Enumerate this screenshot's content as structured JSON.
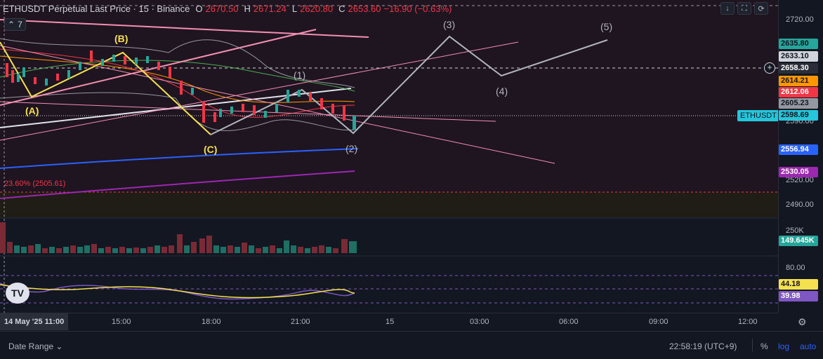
{
  "header": {
    "symbol": "ETHUSDT Perpetual Last Price · 15 · Binance",
    "o_label": "O",
    "o_value": "2670.50",
    "h_label": "H",
    "h_value": "2671.24",
    "l_label": "L",
    "l_value": "2620.80",
    "c_label": "C",
    "c_value": "2653.60",
    "change": "−16.90 (−0.63%)"
  },
  "indicators_toggle": {
    "count": "7"
  },
  "wave_labels": {
    "a": "(A)",
    "b": "(B)",
    "c": "(C)",
    "w1": "(1)",
    "w2": "(2)",
    "w3": "(3)",
    "w4": "(4)",
    "w5": "(5)"
  },
  "fib_label": "23.60% (2505.61)",
  "symbol_tag": "ETHUSDT",
  "price_axis": {
    "ticks": [
      "2720.00",
      "2590.00",
      "2520.00",
      "2490.00",
      "250K",
      "80.00"
    ],
    "tags": [
      {
        "value": "2635.80",
        "bg": "#26a69a",
        "fg": "#131722"
      },
      {
        "value": "2633.10",
        "bg": "#d1d4dc",
        "fg": "#131722"
      },
      {
        "value": "2658.30",
        "bg": "#2a2e39",
        "fg": "#ffffff"
      },
      {
        "value": "2614.21",
        "bg": "#ff9800",
        "fg": "#131722"
      },
      {
        "value": "2612.06",
        "bg": "#f23645",
        "fg": "#ffffff"
      },
      {
        "value": "2605.23",
        "bg": "#9598a1",
        "fg": "#131722"
      },
      {
        "value": "2598.69",
        "bg": "#26c6da",
        "fg": "#131722"
      },
      {
        "value": "2556.94",
        "bg": "#2962ff",
        "fg": "#ffffff"
      },
      {
        "value": "2530.05",
        "bg": "#9c27b0",
        "fg": "#ffffff"
      },
      {
        "value": "149.645K",
        "bg": "#26a69a",
        "fg": "#ffffff"
      },
      {
        "value": "44.18",
        "bg": "#f5e050",
        "fg": "#131722"
      },
      {
        "value": "39.98",
        "bg": "#7e57c2",
        "fg": "#ffffff"
      }
    ]
  },
  "time_axis": {
    "first": "14 May '25   11:00",
    "ticks": [
      "15:00",
      "18:00",
      "21:00",
      "15",
      "03:00",
      "06:00",
      "09:00",
      "12:00"
    ]
  },
  "bottom_bar": {
    "date_range": "Date Range",
    "clock": "22:58:19 (UTC+9)",
    "percent": "%",
    "log": "log",
    "auto": "auto"
  },
  "colors": {
    "background": "#131722",
    "up": "#26a69a",
    "down": "#f23645",
    "accent": "#2962ff"
  },
  "chart_data": {
    "type": "line",
    "title": "ETHUSDT Perpetual Last Price · 15 · Binance",
    "ohlc": {
      "open": 2670.5,
      "high": 2671.24,
      "low": 2620.8,
      "close": 2653.6
    },
    "last_price": 2598.69,
    "x_ticks": [
      "15:00",
      "18:00",
      "21:00",
      "15",
      "03:00",
      "06:00",
      "09:00",
      "12:00"
    ],
    "y_ticks": [
      2720.0,
      2590.0,
      2520.0,
      2490.0
    ],
    "levels": [
      2635.8,
      2633.1,
      2658.3,
      2614.21,
      2612.06,
      2605.23,
      2556.94,
      2530.05
    ],
    "fibonacci": {
      "label": "23.60%",
      "value": 2505.61
    },
    "volume_last": "149.645K",
    "oscillator": {
      "upper": 80.0,
      "values": [
        44.18,
        39.98
      ]
    },
    "annotations": [
      "(A)",
      "(B)",
      "(C)",
      "(1)",
      "(2)",
      "(3)",
      "(4)",
      "(5)"
    ]
  }
}
